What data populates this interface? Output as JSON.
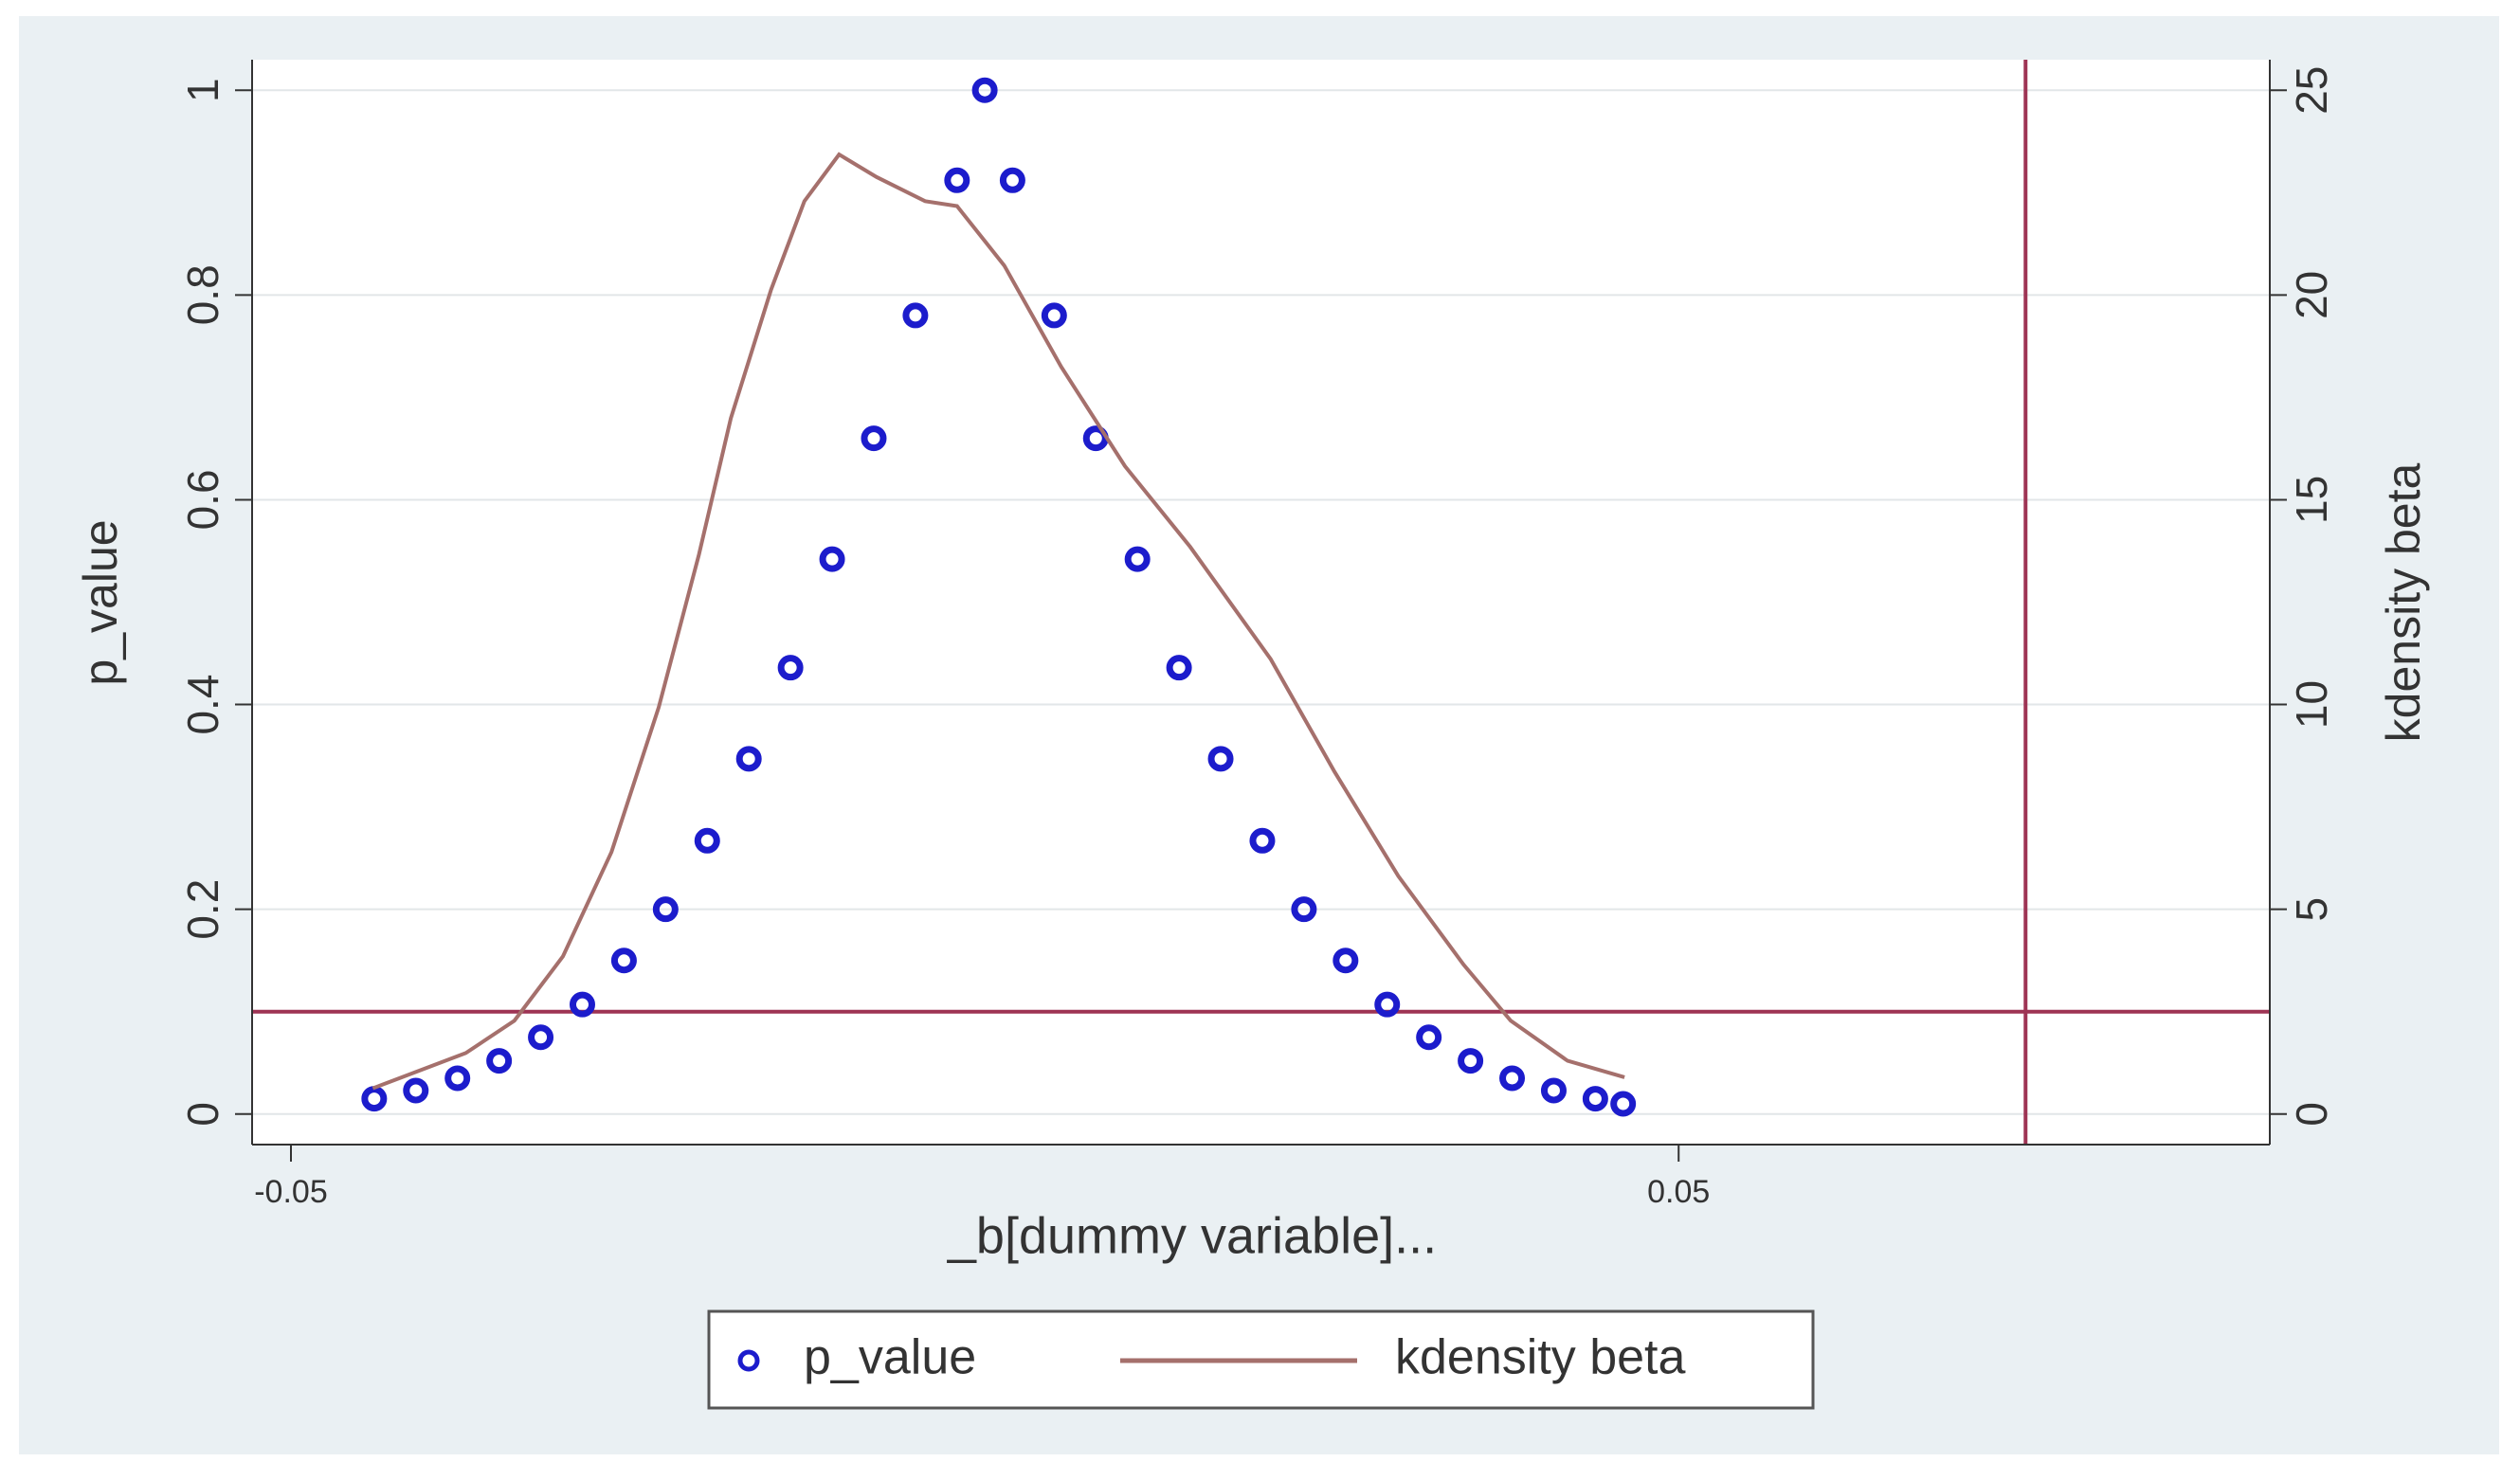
{
  "chart_data": {
    "type": "scatter-line",
    "xlabel": "_b[dummy variable]...",
    "ylabel": "p_value",
    "y2label": "kdensity beta",
    "xlim": [
      -0.0528,
      0.0926
    ],
    "xticks": [
      -0.05,
      0.05
    ],
    "ylim": [
      -0.0298,
      1.0298
    ],
    "yticks": [
      0,
      0.2,
      0.4,
      0.6,
      0.8,
      1
    ],
    "y2lim": [
      -0.745,
      25.745
    ],
    "y2ticks": [
      0,
      5,
      10,
      15,
      20,
      25
    ],
    "grid": true,
    "xline": 0.075,
    "yline": 0.1,
    "refline_color": "#9e3454",
    "series": [
      {
        "name": "p_value",
        "type": "scatter",
        "color": "#1c1ccc",
        "x": [
          -0.044,
          -0.041,
          -0.038,
          -0.035,
          -0.032,
          -0.029,
          -0.026,
          -0.023,
          -0.02,
          -0.017,
          -0.014,
          -0.011,
          -0.008,
          -0.005,
          -0.002,
          0,
          0.002,
          0.005,
          0.008,
          0.011,
          0.014,
          0.017,
          0.02,
          0.023,
          0.026,
          0.029,
          0.032,
          0.035,
          0.038,
          0.041,
          0.044,
          0.046
        ],
        "values": [
          0.015,
          0.023,
          0.035,
          0.052,
          0.075,
          0.107,
          0.15,
          0.2,
          0.267,
          0.347,
          0.436,
          0.542,
          0.66,
          0.78,
          0.912,
          1,
          0.912,
          0.78,
          0.66,
          0.542,
          0.436,
          0.347,
          0.267,
          0.2,
          0.15,
          0.107,
          0.075,
          0.052,
          0.035,
          0.023,
          0.015,
          0.01
        ]
      },
      {
        "name": "kdensity beta",
        "type": "line",
        "axis": "y2",
        "color": "#a5706c",
        "x": [
          -0.0441,
          -0.0374,
          -0.0339,
          -0.0304,
          -0.0269,
          -0.0235,
          -0.0206,
          -0.0183,
          -0.0154,
          -0.013,
          -0.0105,
          -0.0078,
          -0.0043,
          -0.002,
          0.0014,
          0.0055,
          0.0101,
          0.0148,
          0.0206,
          0.0252,
          0.0298,
          0.0345,
          0.0379,
          0.042,
          0.0461
        ],
        "values": [
          0.63,
          1.49,
          2.28,
          3.85,
          6.4,
          9.93,
          13.66,
          16.99,
          20.13,
          22.29,
          23.43,
          22.88,
          22.29,
          22.17,
          20.72,
          18.25,
          15.82,
          13.85,
          11.11,
          8.36,
          5.81,
          3.65,
          2.28,
          1.3,
          0.9
        ]
      }
    ]
  }
}
